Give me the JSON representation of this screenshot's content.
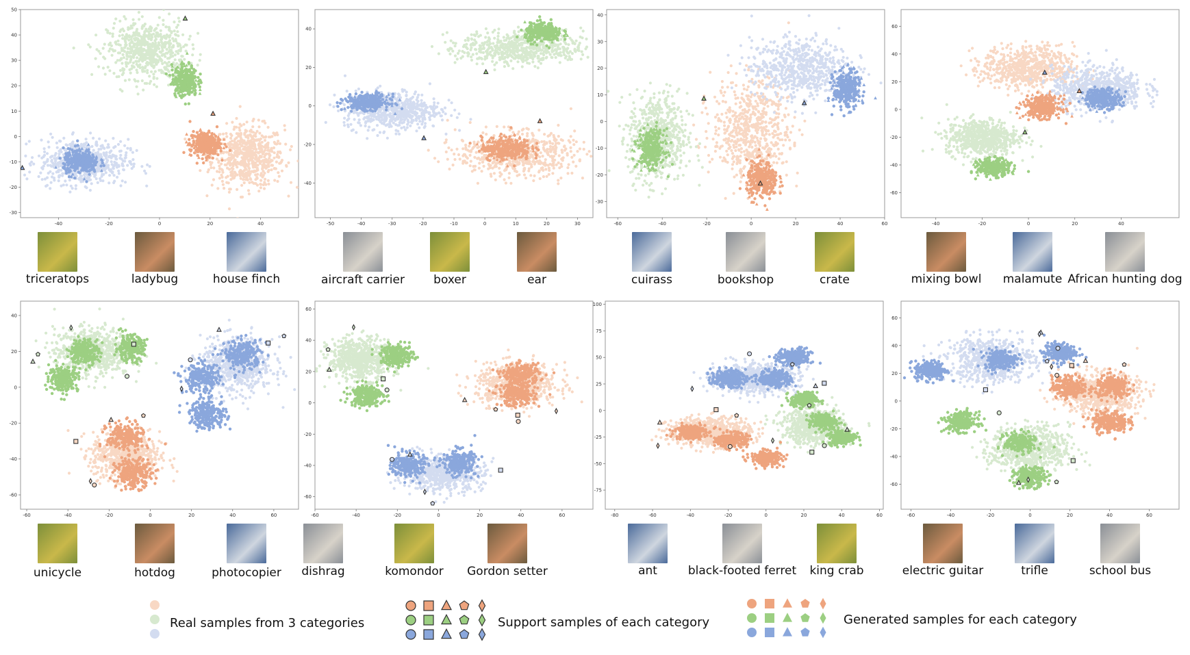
{
  "colors": {
    "real": [
      "#f8d8c4",
      "#d7e9cf",
      "#d3dcf0"
    ],
    "generated": [
      "#eea47e",
      "#9ccf82",
      "#8aa7dc"
    ],
    "stroke": "#333333"
  },
  "legend": {
    "real_label": "Real samples from 3 categories",
    "support_label": "Support samples of each category",
    "generated_label": "Generated samples for each category",
    "marker_shapes": [
      "circle",
      "square",
      "triangle",
      "pentagon",
      "diamond"
    ]
  },
  "chart_data": [
    {
      "type": "scatter",
      "xlim": [
        -55,
        55
      ],
      "ylim": [
        -32,
        50
      ],
      "xticks": [
        -40,
        -20,
        0,
        20,
        40
      ],
      "yticks": [
        -30,
        -20,
        -10,
        0,
        10,
        20,
        30,
        40,
        50
      ],
      "categories": [
        "triceratops",
        "ladybug",
        "house finch"
      ],
      "series": [
        {
          "name": "house finch",
          "color": "orange",
          "real_center": [
            35,
            -8
          ],
          "real_spread": [
            13,
            11
          ],
          "gen_centers": [
            [
              18,
              -3
            ]
          ],
          "gen_spread": [
            6,
            5
          ]
        },
        {
          "name": "ladybug",
          "color": "green",
          "real_center": [
            -5,
            34
          ],
          "real_spread": [
            14,
            10
          ],
          "gen_centers": [
            [
              10,
              22
            ]
          ],
          "gen_spread": [
            5,
            6
          ]
        },
        {
          "name": "triceratops",
          "color": "blue",
          "real_center": [
            -30,
            -10
          ],
          "real_spread": [
            16,
            8
          ],
          "gen_centers": [
            [
              -31,
              -10
            ]
          ],
          "gen_spread": [
            7,
            5
          ]
        }
      ]
    },
    {
      "type": "scatter",
      "xlim": [
        -55,
        35
      ],
      "ylim": [
        -58,
        50
      ],
      "xticks": [
        -50,
        -40,
        -30,
        -20,
        -10,
        0,
        10,
        20,
        30
      ],
      "yticks": [
        -40,
        -20,
        0,
        20,
        40
      ],
      "categories": [
        "aircraft carrier",
        "boxer",
        "ear"
      ],
      "series": [
        {
          "name": "boxer",
          "color": "orange",
          "real_center": [
            10,
            -25
          ],
          "real_spread": [
            17,
            10
          ],
          "gen_centers": [
            [
              7,
              -22
            ]
          ],
          "gen_spread": [
            8,
            6
          ]
        },
        {
          "name": "ear",
          "color": "green",
          "real_center": [
            12,
            30
          ],
          "real_spread": [
            18,
            8
          ],
          "gen_centers": [
            [
              19,
              38
            ]
          ],
          "gen_spread": [
            6,
            5
          ]
        },
        {
          "name": "aircraft carrier",
          "color": "blue",
          "real_center": [
            -30,
            -2
          ],
          "real_spread": [
            14,
            9
          ],
          "gen_centers": [
            [
              -38,
              2
            ]
          ],
          "gen_spread": [
            7,
            4
          ]
        }
      ]
    },
    {
      "type": "scatter",
      "xlim": [
        -65,
        60
      ],
      "ylim": [
        -36,
        42
      ],
      "xticks": [
        -60,
        -40,
        -20,
        0,
        20,
        40,
        60
      ],
      "yticks": [
        -30,
        -20,
        -10,
        0,
        10,
        20,
        30,
        40
      ],
      "categories": [
        "cuirass",
        "bookshop",
        "crate"
      ],
      "series": [
        {
          "name": "bookshop",
          "color": "orange",
          "real_center": [
            0,
            -3
          ],
          "real_spread": [
            16,
            17
          ],
          "gen_centers": [
            [
              5,
              -22
            ]
          ],
          "gen_spread": [
            7,
            7
          ]
        },
        {
          "name": "cuirass",
          "color": "green",
          "real_center": [
            -42,
            -6
          ],
          "real_spread": [
            12,
            15
          ],
          "gen_centers": [
            [
              -45,
              -10
            ]
          ],
          "gen_spread": [
            6,
            7
          ]
        },
        {
          "name": "crate",
          "color": "blue",
          "real_center": [
            22,
            20
          ],
          "real_spread": [
            20,
            10
          ],
          "gen_centers": [
            [
              43,
              12
            ]
          ],
          "gen_spread": [
            6,
            7
          ]
        }
      ]
    },
    {
      "type": "scatter",
      "xlim": [
        -55,
        65
      ],
      "ylim": [
        -78,
        72
      ],
      "xticks": [
        -40,
        -20,
        0,
        20,
        40
      ],
      "yticks": [
        -60,
        -40,
        -20,
        0,
        20,
        40,
        60
      ],
      "categories": [
        "mixing bowl",
        "malamute",
        "African hunting dog"
      ],
      "series": [
        {
          "name": "mixing bowl",
          "color": "orange",
          "real_center": [
            0,
            30
          ],
          "real_spread": [
            18,
            14
          ],
          "gen_centers": [
            [
              6,
              2
            ]
          ],
          "gen_spread": [
            8,
            8
          ]
        },
        {
          "name": "malamute",
          "color": "green",
          "real_center": [
            -20,
            -20
          ],
          "real_spread": [
            14,
            12
          ],
          "gen_centers": [
            [
              -15,
              -42
            ]
          ],
          "gen_spread": [
            7,
            6
          ]
        },
        {
          "name": "African hunting dog",
          "color": "blue",
          "real_center": [
            30,
            15
          ],
          "real_spread": [
            18,
            14
          ],
          "gen_centers": [
            [
              32,
              8
            ]
          ],
          "gen_spread": [
            8,
            7
          ]
        }
      ]
    },
    {
      "type": "scatter",
      "xlim": [
        -63,
        72
      ],
      "ylim": [
        -68,
        48
      ],
      "xticks": [
        -60,
        -40,
        -20,
        0,
        20,
        40,
        60
      ],
      "yticks": [
        -60,
        -40,
        -20,
        0,
        20,
        40
      ],
      "categories": [
        "unicycle",
        "hotdog",
        "photocopier"
      ],
      "series": [
        {
          "name": "hotdog",
          "color": "orange",
          "real_center": [
            -12,
            -38
          ],
          "real_spread": [
            15,
            12
          ],
          "gen_centers": [
            [
              -12,
              -28
            ],
            [
              -8,
              -48
            ]
          ],
          "gen_spread": [
            9,
            8
          ]
        },
        {
          "name": "unicycle",
          "color": "green",
          "real_center": [
            -28,
            20
          ],
          "real_spread": [
            17,
            12
          ],
          "gen_centers": [
            [
              -32,
              20
            ],
            [
              -10,
              22
            ],
            [
              -42,
              5
            ]
          ],
          "gen_spread": [
            7,
            7
          ]
        },
        {
          "name": "photocopier",
          "color": "blue",
          "real_center": [
            42,
            12
          ],
          "real_spread": [
            16,
            14
          ],
          "gen_centers": [
            [
              45,
              18
            ],
            [
              25,
              5
            ],
            [
              28,
              -15
            ]
          ],
          "gen_spread": [
            9,
            8
          ]
        }
      ]
    },
    {
      "type": "scatter",
      "xlim": [
        -60,
        75
      ],
      "ylim": [
        -68,
        65
      ],
      "xticks": [
        -60,
        -40,
        -20,
        0,
        20,
        40,
        60
      ],
      "yticks": [
        -60,
        -40,
        -20,
        0,
        20,
        40,
        60
      ],
      "categories": [
        "dishrag",
        "komondor",
        "Gordon setter"
      ],
      "series": [
        {
          "name": "Gordon setter",
          "color": "orange",
          "real_center": [
            38,
            12
          ],
          "real_spread": [
            18,
            12
          ],
          "gen_centers": [
            [
              40,
              18
            ],
            [
              38,
              5
            ]
          ],
          "gen_spread": [
            9,
            7
          ]
        },
        {
          "name": "dishrag",
          "color": "green",
          "real_center": [
            -38,
            28
          ],
          "real_spread": [
            14,
            12
          ],
          "gen_centers": [
            [
              -20,
              30
            ],
            [
              -35,
              5
            ]
          ],
          "gen_spread": [
            8,
            7
          ]
        },
        {
          "name": "komondor",
          "color": "blue",
          "real_center": [
            2,
            -45
          ],
          "real_spread": [
            18,
            10
          ],
          "gen_centers": [
            [
              -15,
              -40
            ],
            [
              10,
              -38
            ]
          ],
          "gen_spread": [
            8,
            8
          ]
        }
      ]
    },
    {
      "type": "scatter",
      "xlim": [
        -85,
        62
      ],
      "ylim": [
        -93,
        103
      ],
      "xticks": [
        -80,
        -60,
        -40,
        -20,
        0,
        20,
        40,
        60
      ],
      "yticks": [
        -75,
        -50,
        -25,
        0,
        25,
        50,
        75,
        100
      ],
      "categories": [
        "ant",
        "black-footed ferret",
        "king crab"
      ],
      "series": [
        {
          "name": "ant",
          "color": "orange",
          "real_center": [
            -30,
            -20
          ],
          "real_spread": [
            20,
            12
          ],
          "gen_centers": [
            [
              -40,
              -20
            ],
            [
              -18,
              -28
            ],
            [
              0,
              -45
            ]
          ],
          "gen_spread": [
            8,
            7
          ]
        },
        {
          "name": "black-footed ferret",
          "color": "blue",
          "real_center": [
            -5,
            30
          ],
          "real_spread": [
            20,
            12
          ],
          "gen_centers": [
            [
              -20,
              30
            ],
            [
              5,
              30
            ],
            [
              15,
              50
            ]
          ],
          "gen_spread": [
            9,
            8
          ]
        },
        {
          "name": "king crab",
          "color": "green",
          "real_center": [
            25,
            -15
          ],
          "real_spread": [
            15,
            15
          ],
          "gen_centers": [
            [
              20,
              10
            ],
            [
              40,
              -25
            ],
            [
              30,
              -10
            ]
          ],
          "gen_spread": [
            7,
            7
          ]
        }
      ]
    },
    {
      "type": "scatter",
      "xlim": [
        -65,
        75
      ],
      "ylim": [
        -78,
        72
      ],
      "xticks": [
        -60,
        -40,
        -20,
        0,
        20,
        40,
        60
      ],
      "yticks": [
        -60,
        -40,
        -20,
        0,
        20,
        40,
        60
      ],
      "categories": [
        "electric guitar",
        "trifle",
        "school bus"
      ],
      "series": [
        {
          "name": "electric guitar",
          "color": "blue",
          "real_center": [
            -20,
            30
          ],
          "real_spread": [
            20,
            15
          ],
          "gen_centers": [
            [
              -50,
              22
            ],
            [
              -15,
              30
            ],
            [
              15,
              35
            ]
          ],
          "gen_spread": [
            8,
            7
          ]
        },
        {
          "name": "trifle",
          "color": "orange",
          "real_center": [
            35,
            5
          ],
          "real_spread": [
            18,
            14
          ],
          "gen_centers": [
            [
              20,
              10
            ],
            [
              40,
              -15
            ],
            [
              42,
              10
            ]
          ],
          "gen_spread": [
            9,
            8
          ]
        },
        {
          "name": "school bus",
          "color": "green",
          "real_center": [
            0,
            -35
          ],
          "real_spread": [
            18,
            15
          ],
          "gen_centers": [
            [
              -35,
              -15
            ],
            [
              -5,
              -30
            ],
            [
              0,
              -55
            ]
          ],
          "gen_spread": [
            8,
            7
          ]
        }
      ]
    }
  ],
  "captions": [
    [
      "triceratops",
      "ladybug",
      "house finch"
    ],
    [
      "aircraft carrier",
      "boxer",
      "ear"
    ],
    [
      "cuirass",
      "bookshop",
      "crate"
    ],
    [
      "mixing bowl",
      "malamute",
      "African hunting dog"
    ],
    [
      "unicycle",
      "hotdog",
      "photocopier"
    ],
    [
      "dishrag",
      "komondor",
      "Gordon setter"
    ],
    [
      "ant",
      "black-footed ferret",
      "king crab"
    ],
    [
      "electric guitar",
      "trifle",
      "school bus"
    ]
  ],
  "thumbnails": [
    [
      "triceratops-image",
      "ladybug-image",
      "house-finch-image"
    ],
    [
      "aircraft-carrier-image",
      "boxer-image",
      "ear-image"
    ],
    [
      "cuirass-image",
      "bookshop-image",
      "crate-image"
    ],
    [
      "mixing-bowl-image",
      "malamute-image",
      "african-hunting-dog-image"
    ],
    [
      "unicycle-image",
      "hotdog-image",
      "photocopier-image"
    ],
    [
      "dishrag-image",
      "komondor-image",
      "gordon-setter-image"
    ],
    [
      "ant-image",
      "black-footed-ferret-image",
      "king-crab-image"
    ],
    [
      "electric-guitar-image",
      "trifle-image",
      "school-bus-image"
    ]
  ]
}
